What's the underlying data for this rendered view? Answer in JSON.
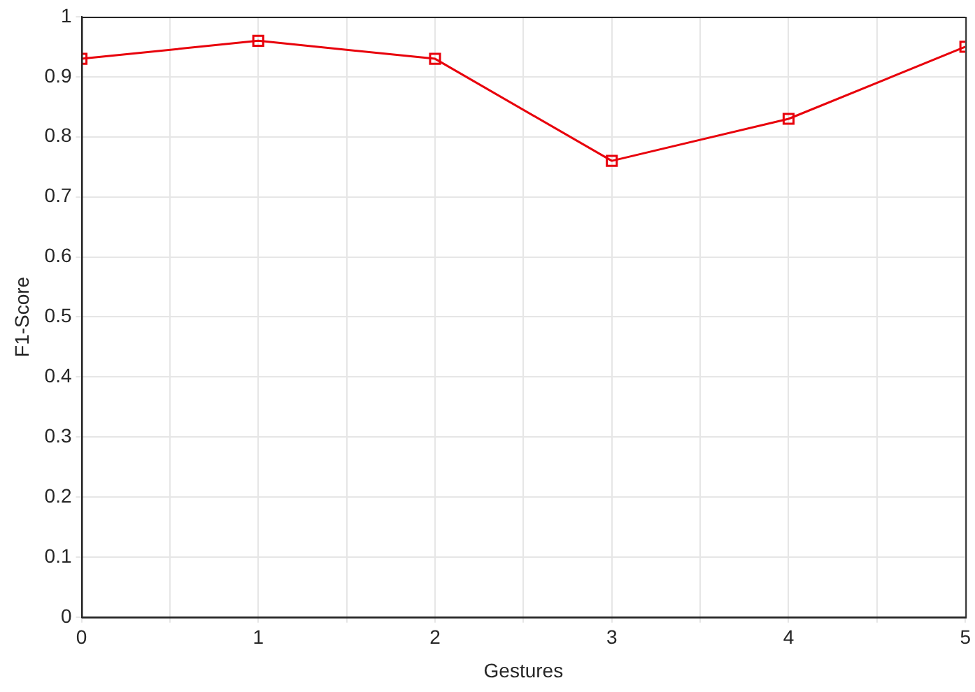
{
  "chart_data": {
    "type": "line",
    "xlabel": "Gestures",
    "ylabel": "F1-Score",
    "x": [
      0,
      1,
      2,
      3,
      4,
      5
    ],
    "series": [
      {
        "color": "#e8000b",
        "values": [
          0.93,
          0.96,
          0.93,
          0.76,
          0.83,
          0.95
        ]
      }
    ],
    "xlim": [
      0,
      5
    ],
    "xticks": [
      0,
      {
        "value": 0.5,
        "label": null
      },
      1,
      {
        "value": 1.5,
        "label": null
      },
      2,
      {
        "value": 2.5,
        "label": null
      },
      3,
      {
        "value": 3.5,
        "label": null
      },
      4,
      {
        "value": 4.5,
        "label": null
      },
      5
    ],
    "ylim": [
      0,
      1
    ],
    "yticks": [
      0,
      0.1,
      0.2,
      0.3,
      0.4,
      0.5,
      0.6,
      0.7,
      0.8,
      0.9,
      1
    ],
    "grid": true,
    "legend": false,
    "marker": "square",
    "line_style": "solid"
  }
}
